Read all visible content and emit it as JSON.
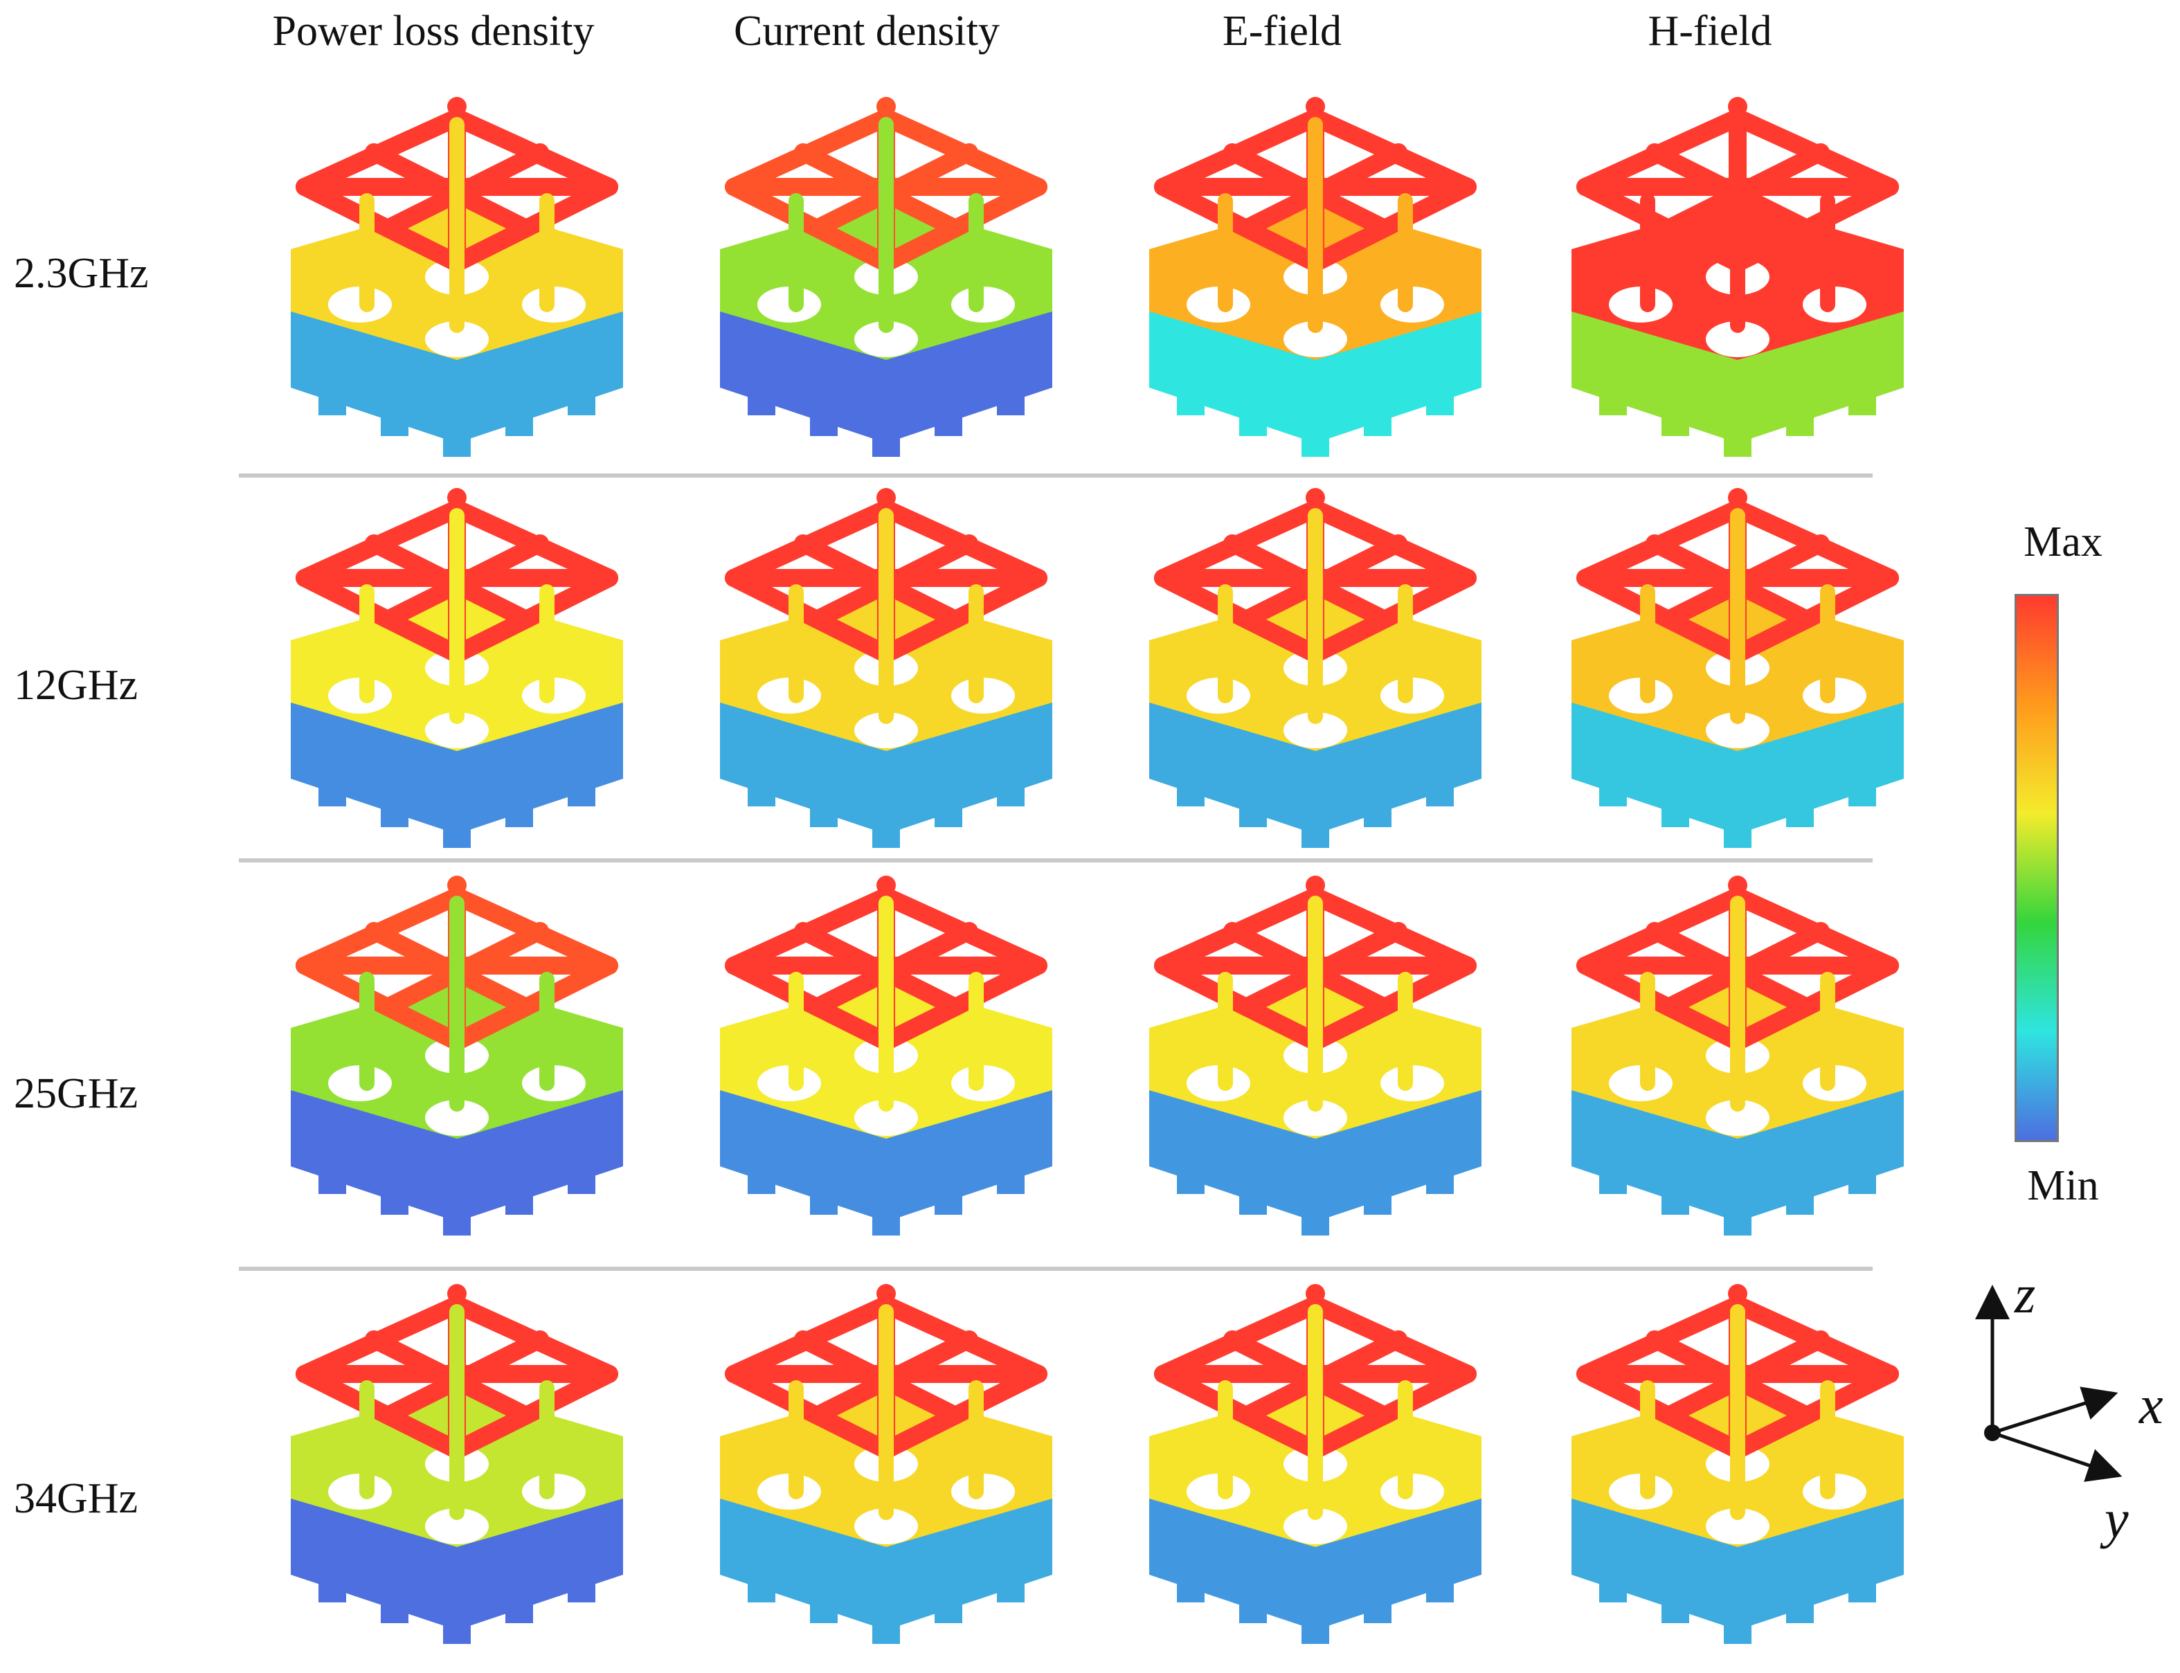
{
  "columns": [
    "Power loss density",
    "Current density",
    "E-field",
    "H-field"
  ],
  "rows": [
    "2.3GHz",
    "12GHz",
    "25GHz",
    "34GHz"
  ],
  "fields": [
    [
      0.55,
      0.4,
      0.65,
      0.95
    ],
    [
      0.5,
      0.55,
      0.55,
      0.6
    ],
    [
      0.4,
      0.5,
      0.52,
      0.55
    ],
    [
      0.45,
      0.55,
      0.52,
      0.55
    ]
  ],
  "colorbar": {
    "max_label": "Max",
    "min_label": "Min",
    "colors": [
      "#ff3b2f",
      "#ff9a1c",
      "#f4ec2c",
      "#34d53c",
      "#2ee5e0",
      "#4d6fe0"
    ]
  },
  "axes": {
    "z": "z",
    "x": "x",
    "y": "y"
  }
}
